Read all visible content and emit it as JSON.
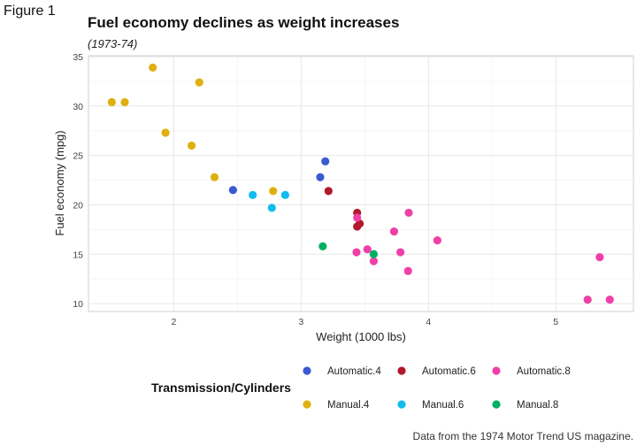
{
  "figure_label": "Figure 1",
  "chart_data": {
    "type": "scatter",
    "title": "Fuel economy declines as weight increases",
    "subtitle": "(1973-74)",
    "xlabel": "Weight (1000 lbs)",
    "ylabel": "Fuel economy (mpg)",
    "xlim": [
      1.33,
      5.61
    ],
    "ylim": [
      9.2,
      35.1
    ],
    "xticks": [
      2,
      3,
      4,
      5
    ],
    "yticks": [
      10,
      15,
      20,
      25,
      30,
      35
    ],
    "grid": true,
    "caption": "Data from the 1974 Motor Trend US magazine.",
    "legend": {
      "title": "Transmission/Cylinders",
      "placement": "bottom"
    },
    "series": [
      {
        "name": "Automatic.4",
        "color": "#3a5bd0",
        "points": [
          [
            2.465,
            21.5
          ],
          [
            3.15,
            22.8
          ],
          [
            3.19,
            24.4
          ]
        ]
      },
      {
        "name": "Automatic.6",
        "color": "#b2182b",
        "points": [
          [
            3.215,
            21.4
          ],
          [
            3.44,
            19.2
          ],
          [
            3.46,
            18.1
          ],
          [
            3.44,
            17.8
          ]
        ]
      },
      {
        "name": "Automatic.8",
        "color": "#f040a8",
        "points": [
          [
            3.44,
            18.7
          ],
          [
            3.57,
            14.3
          ],
          [
            4.07,
            16.4
          ],
          [
            3.73,
            17.3
          ],
          [
            3.78,
            15.2
          ],
          [
            5.25,
            10.4
          ],
          [
            5.424,
            10.4
          ],
          [
            5.345,
            14.7
          ],
          [
            3.52,
            15.5
          ],
          [
            3.435,
            15.2
          ],
          [
            3.84,
            13.3
          ],
          [
            3.845,
            19.2
          ]
        ]
      },
      {
        "name": "Manual.4",
        "color": "#e0b010",
        "points": [
          [
            2.32,
            22.8
          ],
          [
            2.2,
            32.4
          ],
          [
            1.615,
            30.4
          ],
          [
            1.835,
            33.9
          ],
          [
            1.935,
            27.3
          ],
          [
            2.14,
            26.0
          ],
          [
            1.513,
            30.4
          ],
          [
            2.78,
            21.4
          ]
        ]
      },
      {
        "name": "Manual.6",
        "color": "#10bcf0",
        "points": [
          [
            2.62,
            21.0
          ],
          [
            2.875,
            21.0
          ],
          [
            2.77,
            19.7
          ]
        ]
      },
      {
        "name": "Manual.8",
        "color": "#00b060",
        "points": [
          [
            3.17,
            15.8
          ],
          [
            3.57,
            15.0
          ]
        ]
      }
    ]
  }
}
